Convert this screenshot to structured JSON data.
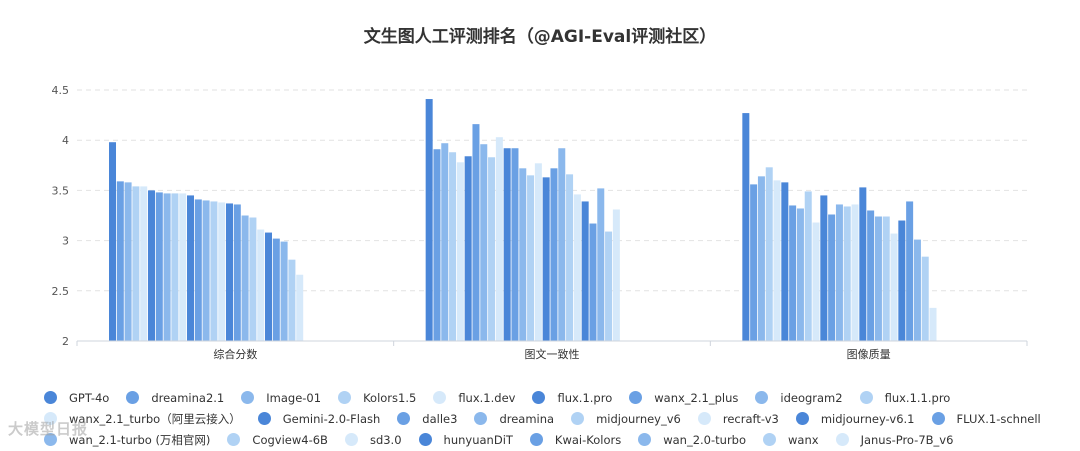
{
  "chart_data": {
    "type": "bar",
    "title": "文生图人工评测排名（@AGI-Eval评测社区）",
    "categories": [
      "综合分数",
      "图文一致性",
      "图像质量"
    ],
    "ylim": [
      2,
      4.5
    ],
    "yticks": [
      "2",
      "2.5",
      "3",
      "3.5",
      "4",
      "4.5"
    ],
    "grid": true,
    "legend_position": "bottom",
    "series": [
      {
        "name": "GPT-4o",
        "color": "#4a86d8",
        "values": [
          3.98,
          4.41,
          4.27
        ]
      },
      {
        "name": "dreamina2.1",
        "color": "#6aa0e4",
        "values": [
          3.59,
          3.91,
          3.56
        ]
      },
      {
        "name": "Image-01",
        "color": "#8bb8ec",
        "values": [
          3.58,
          3.97,
          3.64
        ]
      },
      {
        "name": "Kolors1.5",
        "color": "#b0d2f4",
        "values": [
          3.54,
          3.88,
          3.73
        ]
      },
      {
        "name": "flux.1.dev",
        "color": "#d6e9fa",
        "values": [
          3.54,
          3.78,
          3.6
        ]
      },
      {
        "name": "flux.1.pro",
        "color": "#4a86d8",
        "values": [
          3.5,
          3.84,
          3.58
        ]
      },
      {
        "name": "wanx_2.1_plus",
        "color": "#6aa0e4",
        "values": [
          3.48,
          4.16,
          3.35
        ]
      },
      {
        "name": "ideogram2",
        "color": "#8bb8ec",
        "values": [
          3.47,
          3.96,
          3.32
        ]
      },
      {
        "name": "flux.1.1.pro",
        "color": "#b0d2f4",
        "values": [
          3.47,
          3.83,
          3.49
        ]
      },
      {
        "name": "wanx_2.1_turbo（阿里云接入）",
        "color": "#d6e9fa",
        "values": [
          3.47,
          4.03,
          3.18
        ]
      },
      {
        "name": "Gemini-2.0-Flash",
        "color": "#4a86d8",
        "values": [
          3.45,
          3.92,
          3.45
        ]
      },
      {
        "name": "dalle3",
        "color": "#6aa0e4",
        "values": [
          3.41,
          3.92,
          3.26
        ]
      },
      {
        "name": "dreamina",
        "color": "#8bb8ec",
        "values": [
          3.4,
          3.72,
          3.36
        ]
      },
      {
        "name": "midjourney_v6",
        "color": "#b0d2f4",
        "values": [
          3.39,
          3.65,
          3.34
        ]
      },
      {
        "name": "recraft-v3",
        "color": "#d6e9fa",
        "values": [
          3.38,
          3.77,
          3.36
        ]
      },
      {
        "name": "midjourney-v6.1",
        "color": "#4a86d8",
        "values": [
          3.37,
          3.63,
          3.53
        ]
      },
      {
        "name": "FLUX.1-schnell",
        "color": "#6aa0e4",
        "values": [
          3.36,
          3.72,
          3.3
        ]
      },
      {
        "name": "wan_2.1-turbo (万相官网)",
        "color": "#8bb8ec",
        "values": [
          3.25,
          3.92,
          3.24
        ]
      },
      {
        "name": "Cogview4-6B",
        "color": "#b0d2f4",
        "values": [
          3.23,
          3.66,
          3.24
        ]
      },
      {
        "name": "sd3.0",
        "color": "#d6e9fa",
        "values": [
          3.11,
          3.46,
          3.07
        ]
      },
      {
        "name": "hunyuanDiT",
        "color": "#4a86d8",
        "values": [
          3.08,
          3.39,
          3.2
        ]
      },
      {
        "name": "Kwai-Kolors",
        "color": "#6aa0e4",
        "values": [
          3.02,
          3.17,
          3.39
        ]
      },
      {
        "name": "wan_2.0-turbo",
        "color": "#8bb8ec",
        "values": [
          2.99,
          3.52,
          3.01
        ]
      },
      {
        "name": "wanx",
        "color": "#b0d2f4",
        "values": [
          2.81,
          3.09,
          2.84
        ]
      },
      {
        "name": "Janus-Pro-7B_v6",
        "color": "#d6e9fa",
        "values": [
          2.66,
          3.31,
          2.33
        ]
      }
    ]
  },
  "watermark": "大模型日报"
}
